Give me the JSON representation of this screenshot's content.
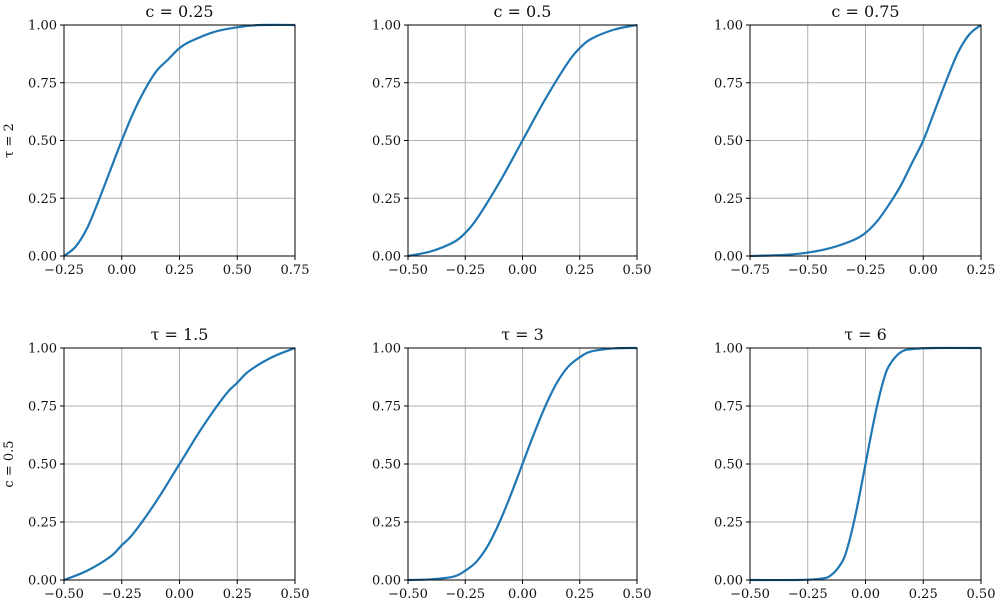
{
  "chart_data": [
    {
      "type": "line",
      "title": "c = 0.25",
      "row_label": "τ = 2",
      "xlim": [
        -0.25,
        0.75
      ],
      "ylim": [
        0,
        1
      ],
      "xticks": [
        "−0.25",
        "0.00",
        "0.25",
        "0.50",
        "0.75"
      ],
      "yticks": [
        "0.00",
        "0.25",
        "0.50",
        "0.75",
        "1.00"
      ],
      "grid": true,
      "series": [
        {
          "color": "#1f77b4",
          "x": [
            -0.25,
            -0.2,
            -0.15,
            -0.1,
            -0.05,
            0.0,
            0.05,
            0.1,
            0.15,
            0.2,
            0.25,
            0.3,
            0.4,
            0.5,
            0.6,
            0.75
          ],
          "y": [
            0.0,
            0.04,
            0.12,
            0.24,
            0.37,
            0.5,
            0.62,
            0.72,
            0.8,
            0.85,
            0.9,
            0.93,
            0.97,
            0.99,
            1.0,
            1.0
          ]
        }
      ]
    },
    {
      "type": "line",
      "title": "c = 0.5",
      "xlim": [
        -0.5,
        0.5
      ],
      "ylim": [
        0,
        1
      ],
      "xticks": [
        "−0.50",
        "−0.25",
        "0.00",
        "0.25",
        "0.50"
      ],
      "yticks": [
        "0.00",
        "0.25",
        "0.50",
        "0.75",
        "1.00"
      ],
      "grid": true,
      "series": [
        {
          "color": "#1f77b4",
          "x": [
            -0.5,
            -0.4,
            -0.3,
            -0.25,
            -0.2,
            -0.1,
            0.0,
            0.1,
            0.2,
            0.25,
            0.3,
            0.4,
            0.5
          ],
          "y": [
            0.0,
            0.02,
            0.06,
            0.1,
            0.16,
            0.32,
            0.5,
            0.68,
            0.84,
            0.9,
            0.94,
            0.98,
            1.0
          ]
        }
      ]
    },
    {
      "type": "line",
      "title": "c = 0.75",
      "xlim": [
        -0.75,
        0.25
      ],
      "ylim": [
        0,
        1
      ],
      "xticks": [
        "−0.75",
        "−0.50",
        "−0.25",
        "0.00",
        "0.25"
      ],
      "yticks": [
        "0.00",
        "0.25",
        "0.50",
        "0.75",
        "1.00"
      ],
      "grid": true,
      "series": [
        {
          "color": "#1f77b4",
          "x": [
            -0.75,
            -0.6,
            -0.5,
            -0.4,
            -0.3,
            -0.25,
            -0.2,
            -0.15,
            -0.1,
            -0.05,
            0.0,
            0.05,
            0.1,
            0.15,
            0.2,
            0.25
          ],
          "y": [
            0.0,
            0.005,
            0.015,
            0.035,
            0.07,
            0.1,
            0.15,
            0.22,
            0.3,
            0.4,
            0.5,
            0.63,
            0.76,
            0.88,
            0.96,
            1.0
          ]
        }
      ]
    },
    {
      "type": "line",
      "title": "τ = 1.5",
      "row_label": "c = 0.5",
      "xlim": [
        -0.5,
        0.5
      ],
      "ylim": [
        0,
        1
      ],
      "xticks": [
        "−0.50",
        "−0.25",
        "0.00",
        "0.25",
        "0.50"
      ],
      "yticks": [
        "0.00",
        "0.25",
        "0.50",
        "0.75",
        "1.00"
      ],
      "grid": true,
      "series": [
        {
          "color": "#1f77b4",
          "x": [
            -0.5,
            -0.4,
            -0.3,
            -0.25,
            -0.2,
            -0.1,
            0.0,
            0.1,
            0.2,
            0.25,
            0.3,
            0.4,
            0.5
          ],
          "y": [
            0.0,
            0.04,
            0.1,
            0.15,
            0.2,
            0.34,
            0.5,
            0.66,
            0.8,
            0.85,
            0.9,
            0.96,
            1.0
          ]
        }
      ]
    },
    {
      "type": "line",
      "title": "τ = 3",
      "xlim": [
        -0.5,
        0.5
      ],
      "ylim": [
        0,
        1
      ],
      "xticks": [
        "−0.50",
        "−0.25",
        "0.00",
        "0.25",
        "0.50"
      ],
      "yticks": [
        "0.00",
        "0.25",
        "0.50",
        "0.75",
        "1.00"
      ],
      "grid": true,
      "series": [
        {
          "color": "#1f77b4",
          "x": [
            -0.5,
            -0.4,
            -0.3,
            -0.25,
            -0.2,
            -0.15,
            -0.1,
            -0.05,
            0.0,
            0.05,
            0.1,
            0.15,
            0.2,
            0.25,
            0.3,
            0.4,
            0.5
          ],
          "y": [
            0.0,
            0.003,
            0.015,
            0.04,
            0.08,
            0.15,
            0.25,
            0.37,
            0.5,
            0.63,
            0.75,
            0.85,
            0.92,
            0.96,
            0.985,
            0.998,
            1.0
          ]
        }
      ]
    },
    {
      "type": "line",
      "title": "τ = 6",
      "xlim": [
        -0.5,
        0.5
      ],
      "ylim": [
        0,
        1
      ],
      "xticks": [
        "−0.50",
        "−0.25",
        "0.00",
        "0.25",
        "0.50"
      ],
      "yticks": [
        "0.00",
        "0.25",
        "0.50",
        "0.75",
        "1.00"
      ],
      "grid": true,
      "series": [
        {
          "color": "#1f77b4",
          "x": [
            -0.5,
            -0.3,
            -0.2,
            -0.15,
            -0.1,
            -0.075,
            -0.05,
            -0.025,
            0.0,
            0.025,
            0.05,
            0.075,
            0.1,
            0.15,
            0.2,
            0.3,
            0.5
          ],
          "y": [
            0.0,
            0.0,
            0.005,
            0.02,
            0.08,
            0.15,
            0.25,
            0.37,
            0.5,
            0.63,
            0.75,
            0.85,
            0.92,
            0.98,
            0.995,
            1.0,
            1.0
          ]
        }
      ]
    }
  ]
}
